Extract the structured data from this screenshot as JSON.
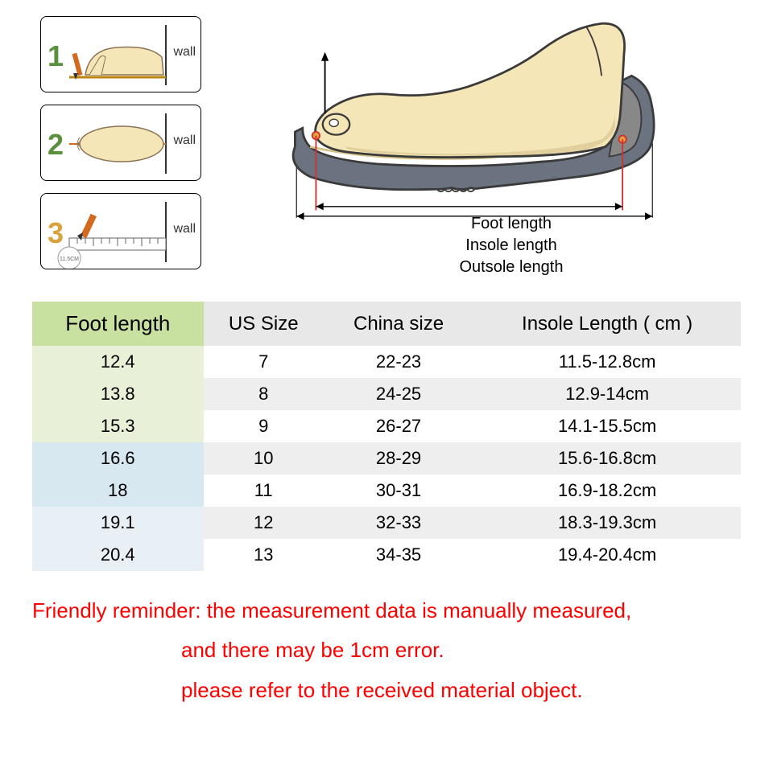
{
  "steps": {
    "items": [
      {
        "num": "1",
        "numColor": "#5a8f3d",
        "wall": "wall"
      },
      {
        "num": "2",
        "numColor": "#5a8f3d",
        "wall": "wall"
      },
      {
        "num": "3",
        "numColor": "#d9a23d",
        "wall": "wall",
        "ruler": "11.5CM"
      }
    ]
  },
  "shoe": {
    "labels": {
      "foot": "Foot length",
      "insole": "Insole length",
      "outsole": "Outsole length"
    },
    "colors": {
      "sole": "#6b7280",
      "foot": "#f5e6b8",
      "footShadow": "#d4c28a",
      "outline": "#3a3a3a",
      "arrowRed": "#cc3333"
    }
  },
  "table": {
    "headers": [
      "Foot length",
      "US Size",
      "China size",
      "Insole Length ( cm )"
    ],
    "headerColors": {
      "first": "#c8e0a0",
      "rest": "#e8e8e8"
    },
    "rowColors": {
      "lightGreen": "#e8f0d8",
      "lightBlue": "#d8e8f0",
      "white": "#ffffff",
      "gray": "#eeeeee",
      "bluePale": "#e8f0f5"
    },
    "rows": [
      {
        "foot": "12.4",
        "us": "7",
        "china": "22-23",
        "insole": "11.5-12.8cm",
        "c0": "#e8f0d8",
        "cRest": "#ffffff"
      },
      {
        "foot": "13.8",
        "us": "8",
        "china": "24-25",
        "insole": "12.9-14cm",
        "c0": "#e8f0d8",
        "cRest": "#eeeeee"
      },
      {
        "foot": "15.3",
        "us": "9",
        "china": "26-27",
        "insole": "14.1-15.5cm",
        "c0": "#e8f0d8",
        "cRest": "#ffffff"
      },
      {
        "foot": "16.6",
        "us": "10",
        "china": "28-29",
        "insole": "15.6-16.8cm",
        "c0": "#d8e8f0",
        "cRest": "#eeeeee"
      },
      {
        "foot": "18",
        "us": "11",
        "china": "30-31",
        "insole": "16.9-18.2cm",
        "c0": "#d8e8f0",
        "cRest": "#ffffff"
      },
      {
        "foot": "19.1",
        "us": "12",
        "china": "32-33",
        "insole": "18.3-19.3cm",
        "c0": "#e8f0f5",
        "cRest": "#eeeeee"
      },
      {
        "foot": "20.4",
        "us": "13",
        "china": "34-35",
        "insole": "19.4-20.4cm",
        "c0": "#e8f0f5",
        "cRest": "#ffffff"
      }
    ]
  },
  "reminder": {
    "line1": "Friendly reminder: the measurement data is manually measured,",
    "line2": "and there may be 1cm error.",
    "line3": "please refer to the received material object.",
    "color": "#ff0000"
  }
}
